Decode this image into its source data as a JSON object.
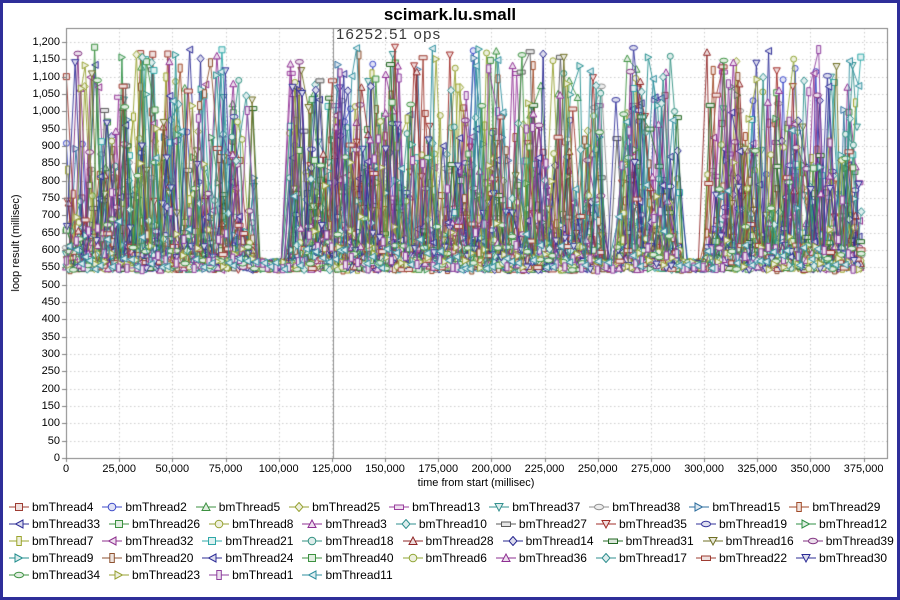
{
  "frame": {
    "border_color": "#2e2e99",
    "bg": "#ffffff"
  },
  "chart_data": {
    "type": "line-scatter",
    "title": "scimark.lu.small",
    "annotation": {
      "text": "16252.51 ops",
      "x": 125500,
      "color": "#3a3a3a"
    },
    "xlabel": "time from start (millisec)",
    "ylabel": "loop result (millisec)",
    "xlim": [
      0,
      386000
    ],
    "ylim": [
      0,
      1240
    ],
    "grid": {
      "color": "#cccccc",
      "dash": [
        1.5,
        2.5
      ]
    },
    "plot_border_color": "#808080",
    "tick_color": "#808080",
    "marker_line": {
      "x": 125500,
      "color": "#909090"
    },
    "legend_position": "bottom",
    "x_ticks": [
      {
        "v": 0,
        "label": "0"
      },
      {
        "v": 25000,
        "label": "25,000"
      },
      {
        "v": 50000,
        "label": "50,000"
      },
      {
        "v": 75000,
        "label": "75,000"
      },
      {
        "v": 100000,
        "label": "100,000"
      },
      {
        "v": 125000,
        "label": "125,000"
      },
      {
        "v": 150000,
        "label": "150,000"
      },
      {
        "v": 175000,
        "label": "175,000"
      },
      {
        "v": 200000,
        "label": "200,000"
      },
      {
        "v": 225000,
        "label": "225,000"
      },
      {
        "v": 250000,
        "label": "250,000"
      },
      {
        "v": 275000,
        "label": "275,000"
      },
      {
        "v": 300000,
        "label": "300,000"
      },
      {
        "v": 325000,
        "label": "325,000"
      },
      {
        "v": 350000,
        "label": "350,000"
      },
      {
        "v": 375000,
        "label": "375,000"
      }
    ],
    "y_ticks": [
      {
        "v": 0,
        "label": "0"
      },
      {
        "v": 50,
        "label": "50"
      },
      {
        "v": 100,
        "label": "100"
      },
      {
        "v": 150,
        "label": "150"
      },
      {
        "v": 200,
        "label": "200"
      },
      {
        "v": 250,
        "label": "250"
      },
      {
        "v": 300,
        "label": "300"
      },
      {
        "v": 350,
        "label": "350"
      },
      {
        "v": 400,
        "label": "400"
      },
      {
        "v": 450,
        "label": "450"
      },
      {
        "v": 500,
        "label": "500"
      },
      {
        "v": 550,
        "label": "550"
      },
      {
        "v": 600,
        "label": "600"
      },
      {
        "v": 650,
        "label": "650"
      },
      {
        "v": 700,
        "label": "700"
      },
      {
        "v": 750,
        "label": "750"
      },
      {
        "v": 800,
        "label": "800"
      },
      {
        "v": 850,
        "label": "850"
      },
      {
        "v": 900,
        "label": "900"
      },
      {
        "v": 950,
        "label": "950"
      },
      {
        "v": 1000,
        "label": "1,000"
      },
      {
        "v": 1050,
        "label": "1,050"
      },
      {
        "v": 1100,
        "label": "1,100"
      },
      {
        "v": 1150,
        "label": "1,150"
      },
      {
        "v": 1200,
        "label": "1,200"
      }
    ],
    "series": [
      {
        "name": "bmThread4",
        "color": "#9e3c32",
        "shape": "square"
      },
      {
        "name": "bmThread2",
        "color": "#3c49c8",
        "shape": "circle"
      },
      {
        "name": "bmThread5",
        "color": "#3c9140",
        "shape": "triangle-up"
      },
      {
        "name": "bmThread25",
        "color": "#97a233",
        "shape": "diamond"
      },
      {
        "name": "bmThread13",
        "color": "#9a3f9e",
        "shape": "rect-h"
      },
      {
        "name": "bmThread37",
        "color": "#33918f",
        "shape": "triangle-down"
      },
      {
        "name": "bmThread38",
        "color": "#8f8f8f",
        "shape": "ellipse-h"
      },
      {
        "name": "bmThread15",
        "color": "#2f6f9f",
        "shape": "triangle-right"
      },
      {
        "name": "bmThread29",
        "color": "#a04a28",
        "shape": "rect-v"
      },
      {
        "name": "bmThread33",
        "color": "#2c2c96",
        "shape": "triangle-left"
      },
      {
        "name": "bmThread26",
        "color": "#3c9140",
        "shape": "square"
      },
      {
        "name": "bmThread8",
        "color": "#97a233",
        "shape": "circle"
      },
      {
        "name": "bmThread3",
        "color": "#8e2f92",
        "shape": "triangle-up"
      },
      {
        "name": "bmThread10",
        "color": "#2f8f8f",
        "shape": "diamond"
      },
      {
        "name": "bmThread27",
        "color": "#5a5a5a",
        "shape": "rect-h"
      },
      {
        "name": "bmThread35",
        "color": "#a02c28",
        "shape": "triangle-down"
      },
      {
        "name": "bmThread19",
        "color": "#32329a",
        "shape": "ellipse-h"
      },
      {
        "name": "bmThread12",
        "color": "#2f8f45",
        "shape": "triangle-right"
      },
      {
        "name": "bmThread7",
        "color": "#9aa42c",
        "shape": "rect-v"
      },
      {
        "name": "bmThread32",
        "color": "#8e2f8e",
        "shape": "triangle-left"
      },
      {
        "name": "bmThread21",
        "color": "#2fa8a8",
        "shape": "square"
      },
      {
        "name": "bmThread18",
        "color": "#2f8f7f",
        "shape": "circle"
      },
      {
        "name": "bmThread28",
        "color": "#8e2424",
        "shape": "triangle-up"
      },
      {
        "name": "bmThread14",
        "color": "#24248e",
        "shape": "diamond"
      },
      {
        "name": "bmThread31",
        "color": "#246924",
        "shape": "rect-h"
      },
      {
        "name": "bmThread16",
        "color": "#6f6f24",
        "shape": "triangle-down"
      },
      {
        "name": "bmThread39",
        "color": "#7f2f7f",
        "shape": "ellipse-h"
      },
      {
        "name": "bmThread9",
        "color": "#248f8f",
        "shape": "triangle-right"
      },
      {
        "name": "bmThread20",
        "color": "#8e5230",
        "shape": "rect-v"
      },
      {
        "name": "bmThread24",
        "color": "#2c2c96",
        "shape": "triangle-left"
      },
      {
        "name": "bmThread40",
        "color": "#3c9140",
        "shape": "square"
      },
      {
        "name": "bmThread6",
        "color": "#8fa432",
        "shape": "circle"
      },
      {
        "name": "bmThread36",
        "color": "#8e2f92",
        "shape": "triangle-up"
      },
      {
        "name": "bmThread17",
        "color": "#2f8f8f",
        "shape": "diamond"
      },
      {
        "name": "bmThread22",
        "color": "#9e3c32",
        "shape": "rect-h"
      },
      {
        "name": "bmThread30",
        "color": "#2c2c96",
        "shape": "triangle-down"
      },
      {
        "name": "bmThread34",
        "color": "#3c9140",
        "shape": "ellipse-h"
      },
      {
        "name": "bmThread23",
        "color": "#97a233",
        "shape": "triangle-right"
      },
      {
        "name": "bmThread1",
        "color": "#8e3f9e",
        "shape": "rect-v"
      },
      {
        "name": "bmThread11",
        "color": "#2f8f9f",
        "shape": "triangle-left"
      }
    ],
    "pattern": {
      "t_start_max": 2600,
      "t_end": 374000,
      "step_min": 1800,
      "step_rand": 3200,
      "baseline": [
        542,
        574
      ],
      "mid_band": [
        574,
        614
      ],
      "gap_band": [
        544,
        566
      ],
      "spike_base": 620,
      "spike_span": 565,
      "spike_pow": 1.6,
      "base_prob": 0.43,
      "mid_prob": 0.25,
      "gaps": [
        [
          88500,
          105000
        ],
        [
          252000,
          258500
        ],
        [
          288500,
          301000
        ]
      ]
    }
  }
}
